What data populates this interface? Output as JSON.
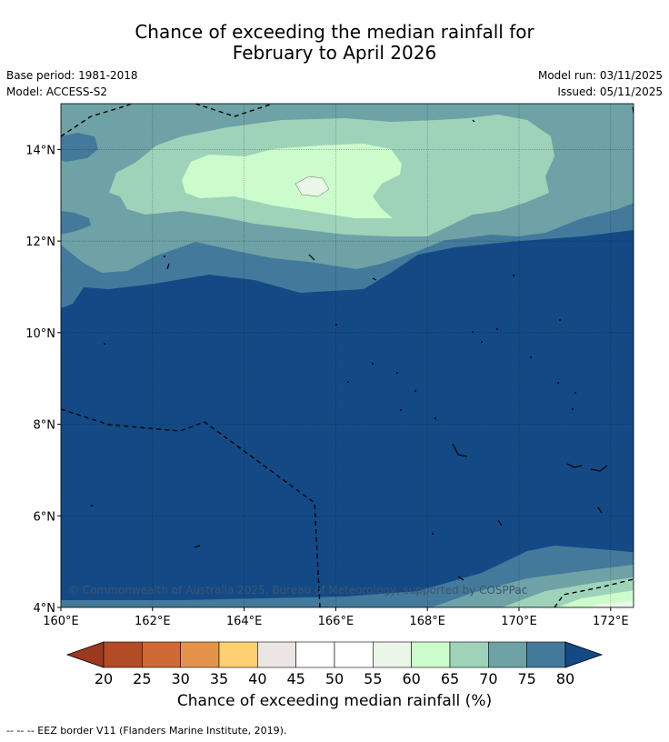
{
  "title": {
    "line1": "Chance of exceeding the median rainfall for",
    "line2": "February to April 2026"
  },
  "meta": {
    "base_period": "Base period: 1981-2018",
    "model": "Model: ACCESS-S2",
    "model_run": "Model run: 03/11/2025",
    "issued": "Issued: 05/11/2025"
  },
  "map": {
    "lon_ticks": [
      "160°E",
      "162°E",
      "164°E",
      "166°E",
      "168°E",
      "170°E",
      "172°E"
    ],
    "lat_ticks": [
      "14°N",
      "12°N",
      "10°N",
      "8°N",
      "6°N",
      "4°N"
    ],
    "copyright": "© Commonwealth of Australia 2025, Bureau of Meteorology, supported by COSPPac",
    "background_color": "#134a86",
    "grid": true
  },
  "colorbar": {
    "ticks": [
      "20",
      "25",
      "30",
      "35",
      "40",
      "45",
      "50",
      "55",
      "60",
      "65",
      "70",
      "75",
      "80"
    ],
    "colors": [
      "#9b391f",
      "#b24c27",
      "#cf6a36",
      "#e3944a",
      "#fdcf70",
      "#ebe6e3",
      "#ffffff",
      "#ffffff",
      "#eaf6e8",
      "#ccfccc",
      "#9ed3ba",
      "#6ea2a6",
      "#437a9b",
      "#134a86"
    ],
    "label": "Chance of exceeding median rainfall (%)"
  },
  "footnote": "--  --  -- EEZ border V11 (Flanders Marine Institute, 2019)."
}
